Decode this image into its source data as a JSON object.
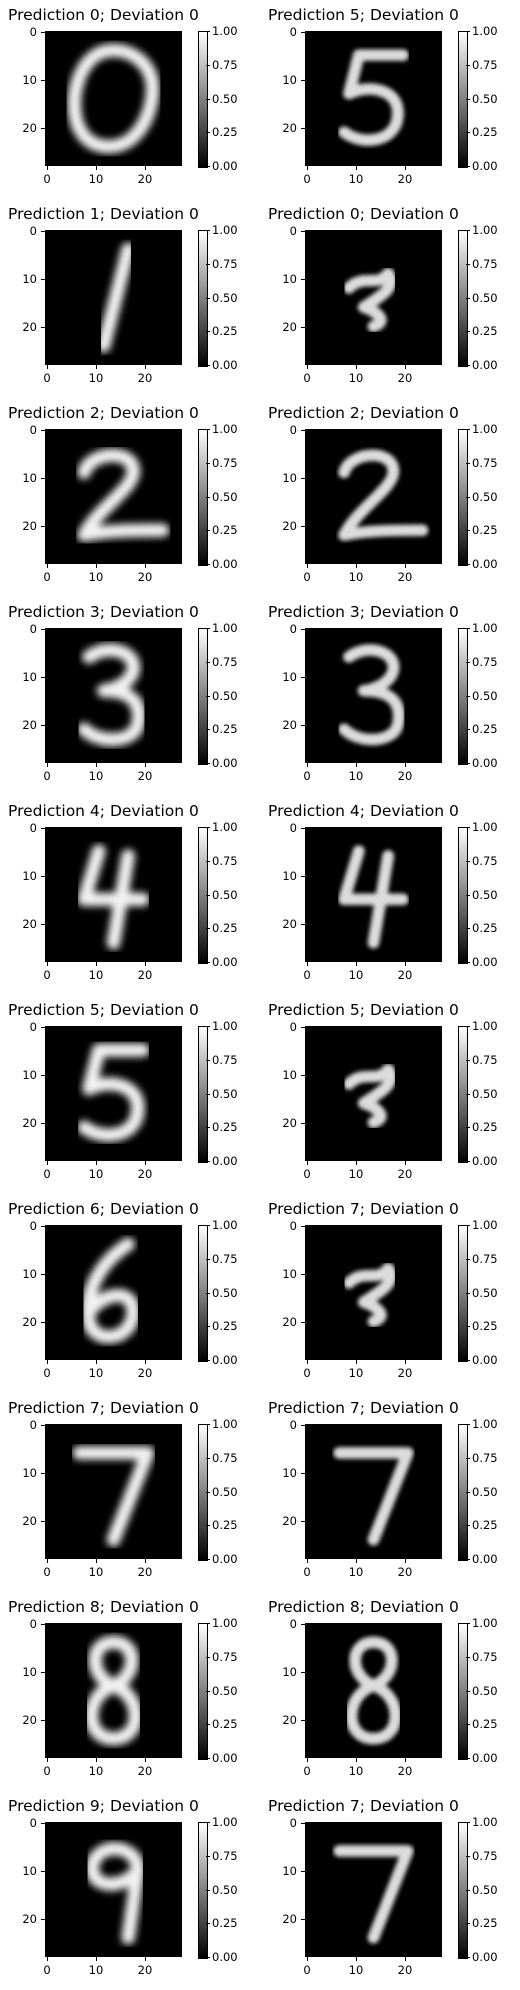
{
  "chart_data": {
    "type": "heatmap",
    "colormap": "gray",
    "image_size": [
      28,
      28
    ],
    "x_ticks": [
      "0",
      "10",
      "20"
    ],
    "y_ticks": [
      "0",
      "10",
      "20"
    ],
    "colorbar_ticks": [
      "1.00",
      "0.75",
      "0.50",
      "0.25",
      "0.00"
    ],
    "colorbar_range": [
      0.0,
      1.0
    ],
    "rows": [
      [
        {
          "title": "Prediction 0; Deviation 0",
          "digit": "0",
          "style": "mnist"
        },
        {
          "title": "Prediction 5; Deviation 0",
          "digit": "5",
          "style": "adversarial"
        }
      ],
      [
        {
          "title": "Prediction 1; Deviation 0",
          "digit": "1",
          "style": "mnist"
        },
        {
          "title": "Prediction 0; Deviation 0",
          "digit": "blob",
          "style": "adversarial"
        }
      ],
      [
        {
          "title": "Prediction 2; Deviation 0",
          "digit": "2",
          "style": "mnist"
        },
        {
          "title": "Prediction 2; Deviation 0",
          "digit": "2",
          "style": "adversarial"
        }
      ],
      [
        {
          "title": "Prediction 3; Deviation 0",
          "digit": "3",
          "style": "mnist"
        },
        {
          "title": "Prediction 3; Deviation 0",
          "digit": "3",
          "style": "adversarial"
        }
      ],
      [
        {
          "title": "Prediction 4; Deviation 0",
          "digit": "4",
          "style": "mnist"
        },
        {
          "title": "Prediction 4; Deviation 0",
          "digit": "4",
          "style": "adversarial"
        }
      ],
      [
        {
          "title": "Prediction 5; Deviation 0",
          "digit": "5",
          "style": "mnist"
        },
        {
          "title": "Prediction 5; Deviation 0",
          "digit": "blob",
          "style": "adversarial"
        }
      ],
      [
        {
          "title": "Prediction 6; Deviation 0",
          "digit": "6",
          "style": "mnist"
        },
        {
          "title": "Prediction 7; Deviation 0",
          "digit": "blob",
          "style": "adversarial"
        }
      ],
      [
        {
          "title": "Prediction 7; Deviation 0",
          "digit": "7",
          "style": "mnist"
        },
        {
          "title": "Prediction 7; Deviation 0",
          "digit": "7",
          "style": "adversarial"
        }
      ],
      [
        {
          "title": "Prediction 8; Deviation 0",
          "digit": "8",
          "style": "mnist"
        },
        {
          "title": "Prediction 8; Deviation 0",
          "digit": "8",
          "style": "adversarial"
        }
      ],
      [
        {
          "title": "Prediction 9; Deviation 0",
          "digit": "9",
          "style": "mnist"
        },
        {
          "title": "Prediction 7; Deviation 0",
          "digit": "7",
          "style": "adversarial"
        }
      ]
    ]
  }
}
